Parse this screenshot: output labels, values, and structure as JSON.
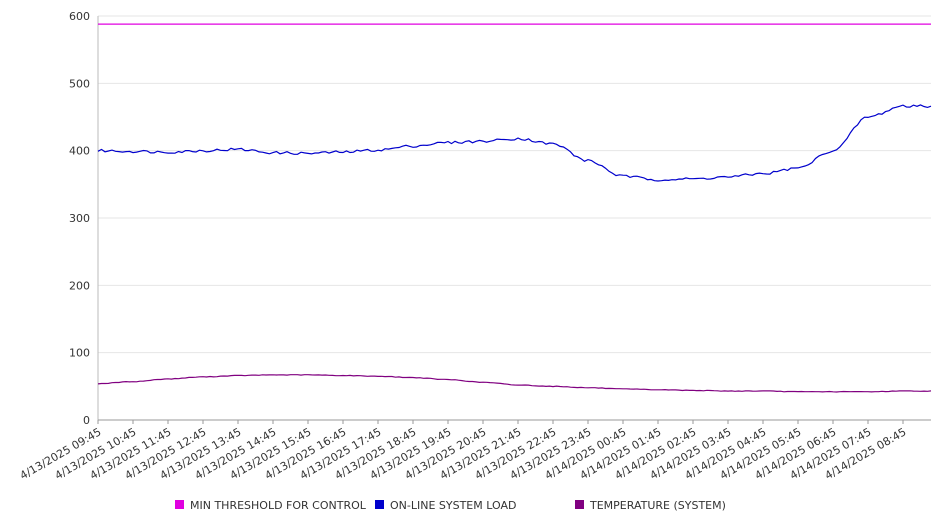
{
  "chart_data": {
    "type": "line",
    "title": "",
    "xlabel": "",
    "ylabel": "",
    "ylim": [
      0,
      600
    ],
    "yticks": [
      0,
      100,
      200,
      300,
      400,
      500,
      600
    ],
    "grid": true,
    "legend_placement": "bottom",
    "categories": [
      "4/13/2025 09:45",
      "4/13/2025 10:45",
      "4/13/2025 11:45",
      "4/13/2025 12:45",
      "4/13/2025 13:45",
      "4/13/2025 14:45",
      "4/13/2025 15:45",
      "4/13/2025 16:45",
      "4/13/2025 17:45",
      "4/13/2025 18:45",
      "4/13/2025 19:45",
      "4/13/2025 20:45",
      "4/13/2025 21:45",
      "4/13/2025 22:45",
      "4/13/2025 23:45",
      "4/14/2025 00:45",
      "4/14/2025 01:45",
      "4/14/2025 02:45",
      "4/14/2025 03:45",
      "4/14/2025 04:45",
      "4/14/2025 05:45",
      "4/14/2025 06:45",
      "4/14/2025 07:45",
      "4/14/2025 08:45"
    ],
    "series": [
      {
        "name": "MIN THRESHOLD FOR CONTROL",
        "color": "#e000e0",
        "values": [
          588,
          588,
          588,
          588,
          588,
          588,
          588,
          588,
          588,
          588,
          588,
          588,
          588,
          588,
          588,
          588,
          588,
          588,
          588,
          588,
          588,
          588,
          588,
          588
        ]
      },
      {
        "name": "ON-LINE SYSTEM LOAD",
        "color": "#0000cc",
        "values": [
          400,
          399,
          398,
          400,
          402,
          397,
          396,
          398,
          401,
          407,
          412,
          414,
          418,
          410,
          385,
          362,
          357,
          358,
          361,
          366,
          374,
          400,
          450,
          466
        ]
      },
      {
        "name": "TEMPERATURE (SYSTEM)",
        "color": "#800080",
        "values": [
          54,
          57,
          61,
          64,
          66,
          67,
          67,
          66,
          65,
          63,
          60,
          56,
          52,
          50,
          48,
          46,
          45,
          44,
          43,
          43,
          42,
          42,
          42,
          43
        ]
      }
    ],
    "x_end_label_extra": 0
  }
}
